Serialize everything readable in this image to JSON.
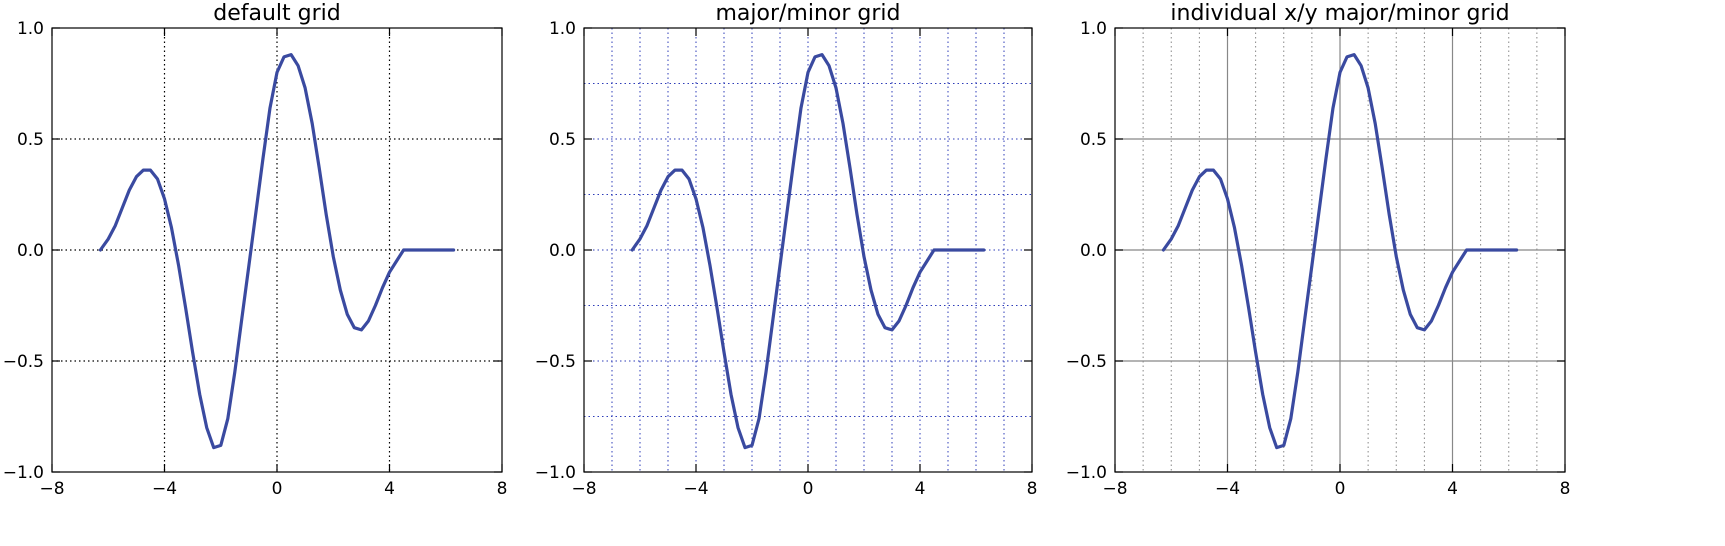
{
  "colors": {
    "line": "#3a4aa0",
    "major_grid_dark": "#000000",
    "minor_grid_blue": "#2e3cb8",
    "grid_gray": "#888888",
    "frame": "#000000"
  },
  "chart_data": [
    {
      "type": "line",
      "title": "default grid",
      "xlim": [
        -8,
        8
      ],
      "ylim": [
        -1.0,
        1.0
      ],
      "xticks": [
        -8,
        -4,
        0,
        4,
        8
      ],
      "xtick_labels": [
        "−8",
        "−4",
        "0",
        "4",
        "8"
      ],
      "yticks": [
        -1.0,
        -0.5,
        0.0,
        0.5,
        1.0
      ],
      "ytick_labels": [
        "−1.0",
        "−0.5",
        "0.0",
        "0.5",
        "1.0"
      ],
      "grid": "major dotted",
      "series": [
        {
          "x": [
            -6.28,
            -6.0,
            -5.75,
            -5.5,
            -5.25,
            -5.0,
            -4.75,
            -4.5,
            -4.25,
            -4.0,
            -3.75,
            -3.5,
            -3.25,
            -3.0,
            -2.75,
            -2.5,
            -2.25,
            -2.0,
            -1.75,
            -1.5,
            -1.25,
            -1.0,
            -0.75,
            -0.5,
            -0.25,
            0.0,
            0.25,
            0.5,
            0.75,
            1.0,
            1.25,
            1.5,
            1.75,
            2.0,
            2.25,
            2.5,
            2.75,
            3.0,
            3.25,
            3.5,
            3.75,
            4.0,
            4.25,
            4.5,
            4.75,
            5.0,
            5.25,
            5.5,
            5.75,
            6.0,
            6.28
          ],
          "y": [
            0.0,
            0.05,
            0.11,
            0.19,
            0.27,
            0.33,
            0.36,
            0.36,
            0.32,
            0.23,
            0.1,
            -0.07,
            -0.26,
            -0.46,
            -0.65,
            -0.8,
            -0.89,
            -0.88,
            -0.76,
            -0.55,
            -0.31,
            -0.07,
            0.17,
            0.41,
            0.64,
            0.8,
            0.87,
            0.88,
            0.83,
            0.73,
            0.57,
            0.37,
            0.16,
            -0.03,
            -0.18,
            -0.29,
            -0.35,
            -0.36,
            -0.32,
            -0.25,
            -0.17,
            -0.1,
            -0.05,
            0.0,
            0.0,
            0.0,
            0.0,
            0.0,
            0.0,
            0.0,
            0.0
          ]
        }
      ]
    },
    {
      "type": "line",
      "title": "major/minor grid",
      "xlim": [
        -8,
        8
      ],
      "ylim": [
        -1.0,
        1.0
      ],
      "xticks": [
        -8,
        -4,
        0,
        4,
        8
      ],
      "xtick_labels": [
        "−8",
        "−4",
        "0",
        "4",
        "8"
      ],
      "yticks": [
        -1.0,
        -0.5,
        0.0,
        0.5,
        1.0
      ],
      "ytick_labels": [
        "−1.0",
        "−0.5",
        "0.0",
        "0.5",
        "1.0"
      ],
      "grid": "major and minor dotted blue",
      "series": []
    },
    {
      "type": "line",
      "title": "individual x/y major/minor grid",
      "xlim": [
        -8,
        8
      ],
      "ylim": [
        -1.0,
        1.0
      ],
      "xticks": [
        -8,
        -4,
        0,
        4,
        8
      ],
      "xtick_labels": [
        "−8",
        "−4",
        "0",
        "4",
        "8"
      ],
      "yticks": [
        -1.0,
        -0.5,
        0.0,
        0.5,
        1.0
      ],
      "ytick_labels": [
        "−1.0",
        "−0.5",
        "0.0",
        "0.5",
        "1.0"
      ],
      "grid": "x major solid gray, x minor dotted gray, y major solid gray",
      "series": []
    }
  ]
}
